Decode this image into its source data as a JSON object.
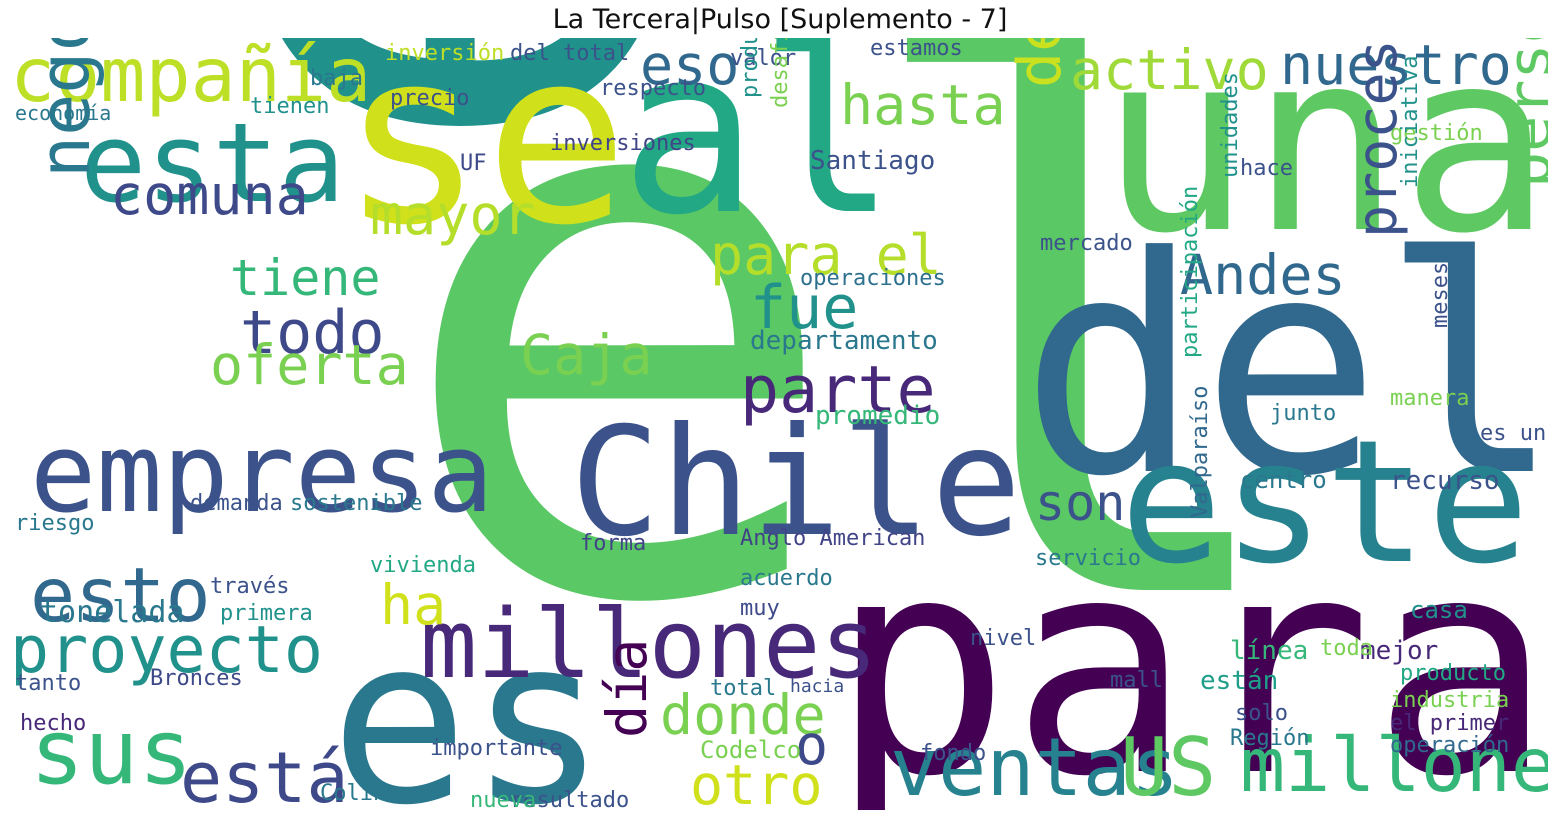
{
  "title": "La Tercera|Pulso [Suplemento - 7]",
  "palette": [
    "#440154",
    "#482475",
    "#414487",
    "#355f8d",
    "#2a788e",
    "#21918c",
    "#22a884",
    "#44bf70",
    "#7ad151",
    "#bddf26",
    "#fde725"
  ],
  "words": [
    {
      "text": "el",
      "c": "#5ac864",
      "w": 1.0
    },
    {
      "text": "en",
      "c": "#21918c",
      "w": 0.95
    },
    {
      "text": "se",
      "c": "#d0e11c",
      "w": 0.55
    },
    {
      "text": "una",
      "c": "#5ec962",
      "w": 0.45
    },
    {
      "text": "del",
      "c": "#31688e",
      "w": 0.5
    },
    {
      "text": "para",
      "c": "#440154",
      "w": 0.5
    },
    {
      "text": "es",
      "c": "#2a788e",
      "w": 0.45
    },
    {
      "text": "al",
      "c": "#22a884",
      "w": 0.4
    },
    {
      "text": "este",
      "c": "#26828e",
      "w": 0.35
    },
    {
      "text": "Chile",
      "c": "#3b528b",
      "w": 0.33
    },
    {
      "text": "empresa",
      "c": "#3b528b",
      "w": 0.3
    },
    {
      "text": "esta",
      "c": "#21918c",
      "w": 0.25
    },
    {
      "text": "compañía",
      "c": "#bddf26",
      "w": 0.22
    },
    {
      "text": "sus",
      "c": "#35b779",
      "w": 0.22
    },
    {
      "text": "millones",
      "c": "#482878",
      "w": 0.2
    },
    {
      "text": "ventas",
      "c": "#26828e",
      "w": 0.2
    },
    {
      "text": "US",
      "c": "#5ec962",
      "w": 0.2
    },
    {
      "text": "millones",
      "c": "#35b779",
      "w": 0.16
    },
    {
      "text": "está",
      "c": "#3e4989",
      "w": 0.18
    },
    {
      "text": "esto",
      "c": "#31688e",
      "w": 0.16
    },
    {
      "text": "proyecto",
      "c": "#21918c",
      "w": 0.16
    },
    {
      "text": "negocio",
      "c": "#2a788e",
      "w": 0.15
    },
    {
      "text": "comuna",
      "c": "#3e4989",
      "w": 0.15
    },
    {
      "text": "mayor",
      "c": "#b5de2b",
      "w": 0.15
    },
    {
      "text": "tiene",
      "c": "#35b779",
      "w": 0.14
    },
    {
      "text": "todo",
      "c": "#3e4989",
      "w": 0.14
    },
    {
      "text": "oferta",
      "c": "#7ad151",
      "w": 0.14
    },
    {
      "text": "parte",
      "c": "#482878",
      "w": 0.14
    },
    {
      "text": "para el",
      "c": "#b5de2b",
      "w": 0.14
    },
    {
      "text": "fue",
      "c": "#21918c",
      "w": 0.14
    },
    {
      "text": "Caja",
      "c": "#7ad151",
      "w": 0.14
    },
    {
      "text": "hasta",
      "c": "#7ad151",
      "w": 0.14
    },
    {
      "text": "eso",
      "c": "#31688e",
      "w": 0.13
    },
    {
      "text": "activo",
      "c": "#a0da39",
      "w": 0.13
    },
    {
      "text": "nuestro",
      "c": "#31688e",
      "w": 0.13
    },
    {
      "text": "desde",
      "c": "#cae11f",
      "w": 0.13
    },
    {
      "text": "Andes",
      "c": "#31688e",
      "w": 0.13
    },
    {
      "text": "persona",
      "c": "#5ec962",
      "w": 0.13
    },
    {
      "text": "proceso",
      "c": "#3b528b",
      "w": 0.13
    },
    {
      "text": "son",
      "c": "#3b528b",
      "w": 0.12
    },
    {
      "text": "ha",
      "c": "#d0e11c",
      "w": 0.12
    },
    {
      "text": "donde",
      "c": "#7ad151",
      "w": 0.12
    },
    {
      "text": "día",
      "c": "#440154",
      "w": 0.12
    },
    {
      "text": "otro",
      "c": "#d0e11c",
      "w": 0.12
    },
    {
      "text": "o",
      "c": "#3e4989",
      "w": 0.12
    },
    {
      "text": "tonelada",
      "c": "#2a788e",
      "w": 0.09
    },
    {
      "text": "Anglo American",
      "c": "#414487",
      "w": 0.08
    },
    {
      "text": "inversiones",
      "c": "#414487",
      "w": 0.07
    },
    {
      "text": "Santiago",
      "c": "#3b528b",
      "w": 0.08
    },
    {
      "text": "departamento",
      "c": "#2a788e",
      "w": 0.08
    },
    {
      "text": "promedio",
      "c": "#35b779",
      "w": 0.08
    },
    {
      "text": "operaciones",
      "c": "#2d708e",
      "w": 0.07
    },
    {
      "text": "recurso",
      "c": "#3b528b",
      "w": 0.08
    },
    {
      "text": "servicio",
      "c": "#2a788e",
      "w": 0.07
    },
    {
      "text": "Valparaíso",
      "c": "#31688e",
      "w": 0.07
    },
    {
      "text": "línea",
      "c": "#35b779",
      "w": 0.07
    },
    {
      "text": "están",
      "c": "#1f9e89",
      "w": 0.07
    },
    {
      "text": "mejor",
      "c": "#482878",
      "w": 0.07
    },
    {
      "text": "producto",
      "c": "#22a884",
      "w": 0.07
    },
    {
      "text": "industria",
      "c": "#7ad151",
      "w": 0.07
    },
    {
      "text": "el primer",
      "c": "#482878",
      "w": 0.07
    },
    {
      "text": "operación",
      "c": "#31688e",
      "w": 0.06
    },
    {
      "text": "Región",
      "c": "#2a788e",
      "w": 0.06
    },
    {
      "text": "Codelco",
      "c": "#7ad151",
      "w": 0.06
    },
    {
      "text": "importante",
      "c": "#3b528b",
      "w": 0.06
    },
    {
      "text": "resultado",
      "c": "#3b528b",
      "w": 0.06
    },
    {
      "text": "nueva",
      "c": "#35b779",
      "w": 0.06
    },
    {
      "text": "Colina",
      "c": "#2a788e",
      "w": 0.06
    },
    {
      "text": "Bronces",
      "c": "#3e4989",
      "w": 0.06
    },
    {
      "text": "demanda",
      "c": "#3b528b",
      "w": 0.06
    },
    {
      "text": "sostenible",
      "c": "#2a788e",
      "w": 0.06
    },
    {
      "text": "vivienda",
      "c": "#22a884",
      "w": 0.06
    },
    {
      "text": "acuerdo",
      "c": "#2a788e",
      "w": 0.06
    },
    {
      "text": "centro",
      "c": "#2a788e",
      "w": 0.06
    },
    {
      "text": "forma",
      "c": "#414487",
      "w": 0.06
    },
    {
      "text": "mercado",
      "c": "#3b528b",
      "w": 0.05
    },
    {
      "text": "economía",
      "c": "#2a788e",
      "w": 0.05
    },
    {
      "text": "baja",
      "c": "#2a788e",
      "w": 0.05
    },
    {
      "text": "inversión",
      "c": "#bddf26",
      "w": 0.05
    },
    {
      "text": "del total",
      "c": "#3b528b",
      "w": 0.05
    },
    {
      "text": "valor",
      "c": "#3b528b",
      "w": 0.05
    },
    {
      "text": "estamos",
      "c": "#3b528b",
      "w": 0.05
    },
    {
      "text": "producción",
      "c": "#21918c",
      "w": 0.05
    },
    {
      "text": "desafío",
      "c": "#7ad151",
      "w": 0.05
    },
    {
      "text": "respecto",
      "c": "#3b528b",
      "w": 0.05
    },
    {
      "text": "precio",
      "c": "#3b528b",
      "w": 0.05
    },
    {
      "text": "tienen",
      "c": "#21918c",
      "w": 0.05
    },
    {
      "text": "gestión",
      "c": "#7ad151",
      "w": 0.05
    },
    {
      "text": "hace",
      "c": "#3b528b",
      "w": 0.05
    },
    {
      "text": "unidades",
      "c": "#21918c",
      "w": 0.05
    },
    {
      "text": "iniciativa",
      "c": "#21918c",
      "w": 0.05
    },
    {
      "text": "participación",
      "c": "#22a884",
      "w": 0.05
    },
    {
      "text": "junto",
      "c": "#2a788e",
      "w": 0.05
    },
    {
      "text": "casa",
      "c": "#21918c",
      "w": 0.05
    },
    {
      "text": "manera",
      "c": "#7ad151",
      "w": 0.05
    },
    {
      "text": "meses",
      "c": "#3b528b",
      "w": 0.05
    },
    {
      "text": "es un",
      "c": "#3b528b",
      "w": 0.05
    },
    {
      "text": "muy",
      "c": "#3e4989",
      "w": 0.05
    },
    {
      "text": "riesgo",
      "c": "#2a788e",
      "w": 0.05
    },
    {
      "text": "hecho",
      "c": "#482878",
      "w": 0.05
    },
    {
      "text": "tanto",
      "c": "#3b528b",
      "w": 0.05
    },
    {
      "text": "primera",
      "c": "#21918c",
      "w": 0.05
    },
    {
      "text": "través",
      "c": "#3b528b",
      "w": 0.05
    },
    {
      "text": "fondo",
      "c": "#3b528b",
      "w": 0.05
    },
    {
      "text": "hacia",
      "c": "#3b528b",
      "w": 0.04
    },
    {
      "text": "total",
      "c": "#2a788e",
      "w": 0.05
    },
    {
      "text": "mall",
      "c": "#3b528b",
      "w": 0.05
    },
    {
      "text": "nivel",
      "c": "#3b528b",
      "w": 0.05
    },
    {
      "text": "solo",
      "c": "#3b528b",
      "w": 0.05
    },
    {
      "text": "toda",
      "c": "#7ad151",
      "w": 0.05
    },
    {
      "text": "UF",
      "c": "#3e4989",
      "w": 0.05
    }
  ]
}
